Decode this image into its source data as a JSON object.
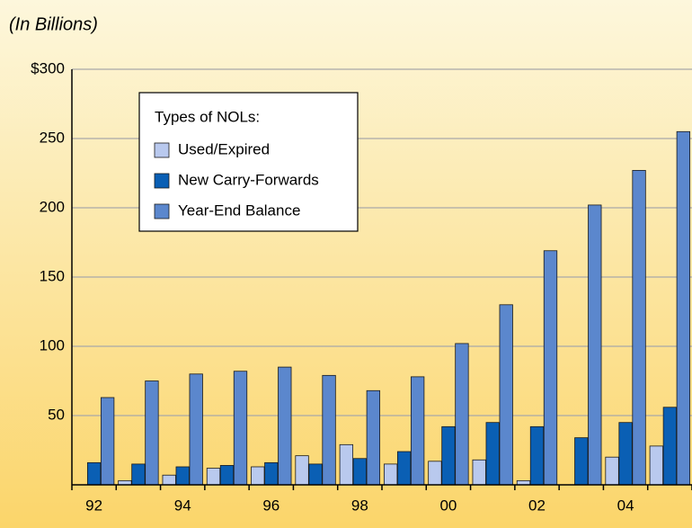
{
  "chart_data": {
    "type": "bar",
    "title": "(In Billions)",
    "legend_title": "Types of NOLs:",
    "categories": [
      "92",
      null,
      "94",
      null,
      "96",
      null,
      "98",
      null,
      "00",
      null,
      "02",
      null,
      "04",
      null
    ],
    "series": [
      {
        "name": "Used/Expired",
        "color": "#b9c9ee",
        "values": [
          0,
          3,
          7,
          12,
          13,
          21,
          29,
          15,
          17,
          18,
          3,
          0,
          20,
          28
        ]
      },
      {
        "name": "New Carry-Forwards",
        "color": "#0a5fb4",
        "values": [
          16,
          15,
          13,
          14,
          16,
          15,
          19,
          24,
          42,
          45,
          42,
          34,
          45,
          56
        ]
      },
      {
        "name": "Year-End Balance",
        "color": "#5b87cd",
        "values": [
          63,
          75,
          80,
          82,
          85,
          79,
          68,
          78,
          102,
          130,
          169,
          202,
          227,
          255
        ]
      }
    ],
    "ylim": [
      0,
      300
    ],
    "yticks": [
      50,
      100,
      150,
      200,
      250,
      {
        "value": 300,
        "label": "$300"
      }
    ],
    "grid": true,
    "legend": "upper left"
  }
}
